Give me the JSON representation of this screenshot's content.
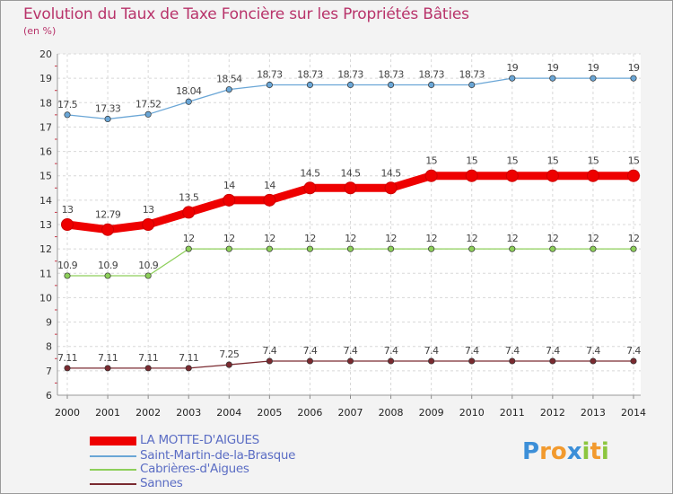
{
  "title": "Evolution du Taux de Taxe Foncière sur les Propriétés Bâties",
  "unit_label": "(en %)",
  "brand": {
    "letters": [
      "P",
      "r",
      "o",
      "x",
      "i",
      "t",
      "i"
    ],
    "colors": [
      "#3c8fd8",
      "#f29a2e",
      "#f29a2e",
      "#3c8fd8",
      "#8cc63f",
      "#f29a2e",
      "#8cc63f"
    ]
  },
  "chart_data": {
    "type": "line",
    "x": [
      "2000",
      "2001",
      "2002",
      "2003",
      "2004",
      "2005",
      "2006",
      "2007",
      "2008",
      "2009",
      "2010",
      "2011",
      "2012",
      "2013",
      "2014"
    ],
    "ylim": [
      6,
      20
    ],
    "yticks": [
      "6",
      "7",
      "8",
      "9",
      "10",
      "11",
      "12",
      "13",
      "14",
      "15",
      "16",
      "17",
      "18",
      "19",
      "20"
    ],
    "grid": true,
    "legend_position": "bottom-left",
    "series": [
      {
        "name": "LA MOTTE-D'AIGUES",
        "color": "#ee0000",
        "emphasis": true,
        "values": [
          13,
          12.79,
          13,
          13.5,
          14,
          14,
          14.5,
          14.5,
          14.5,
          15,
          15,
          15,
          15,
          15,
          15
        ],
        "labels": [
          "13",
          "12.79",
          "13",
          "13.5",
          "14",
          "14",
          "14.5",
          "14.5",
          "14.5",
          "15",
          "15",
          "15",
          "15",
          "15",
          "15"
        ]
      },
      {
        "name": "Saint-Martin-de-la-Brasque",
        "color": "#6aa6d6",
        "emphasis": false,
        "values": [
          17.5,
          17.33,
          17.52,
          18.04,
          18.54,
          18.73,
          18.73,
          18.73,
          18.73,
          18.73,
          18.73,
          19,
          19,
          19,
          19
        ],
        "labels": [
          "17.5",
          "17.33",
          "17.52",
          "18.04",
          "18.54",
          "18.73",
          "18.73",
          "18.73",
          "18.73",
          "18.73",
          "18.73",
          "19",
          "19",
          "19",
          "19"
        ]
      },
      {
        "name": "Cabrières-d'Aigues",
        "color": "#8dcf5a",
        "emphasis": false,
        "values": [
          10.9,
          10.9,
          10.9,
          12,
          12,
          12,
          12,
          12,
          12,
          12,
          12,
          12,
          12,
          12,
          12
        ],
        "labels": [
          "10.9",
          "10.9",
          "10.9",
          "12",
          "12",
          "12",
          "12",
          "12",
          "12",
          "12",
          "12",
          "12",
          "12",
          "12",
          "12"
        ]
      },
      {
        "name": "Sannes",
        "color": "#7a2a30",
        "emphasis": false,
        "values": [
          7.11,
          7.11,
          7.11,
          7.11,
          7.25,
          7.4,
          7.4,
          7.4,
          7.4,
          7.4,
          7.4,
          7.4,
          7.4,
          7.4,
          7.4
        ],
        "labels": [
          "7.11",
          "7.11",
          "7.11",
          "7.11",
          "7.25",
          "7.4",
          "7.4",
          "7.4",
          "7.4",
          "7.4",
          "7.4",
          "7.4",
          "7.4",
          "7.4",
          "7.4"
        ]
      }
    ]
  }
}
